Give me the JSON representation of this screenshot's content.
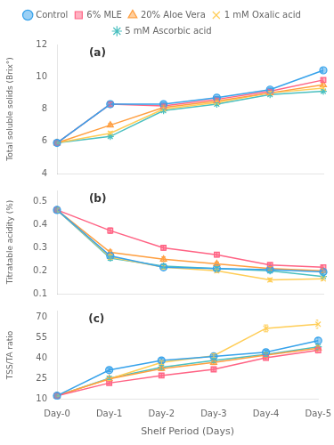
{
  "chart_data": [
    {
      "type": "line",
      "y_label": "Total soluble solids (Brix°)",
      "categories": [
        "Day-0",
        "Day-1",
        "Day-2",
        "Day-3",
        "Day-4",
        "Day-5"
      ],
      "series": [
        {
          "name": "Control",
          "marker": "circle",
          "values": [
            5.9,
            8.3,
            8.3,
            8.7,
            9.2,
            10.4
          ],
          "errors": [
            0.05,
            0.12,
            0.1,
            0.08,
            0.1,
            0.12
          ]
        },
        {
          "name": "6% MLE",
          "marker": "square",
          "values": [
            5.9,
            8.3,
            8.2,
            8.6,
            9.1,
            9.8
          ],
          "errors": [
            0.05,
            0.12,
            0.1,
            0.08,
            0.1,
            0.1
          ]
        },
        {
          "name": "20% Aloe Vera",
          "marker": "triangle",
          "values": [
            5.9,
            7.0,
            8.1,
            8.5,
            9.0,
            9.5
          ],
          "errors": [
            0.05,
            0.1,
            0.1,
            0.08,
            0.1,
            0.1
          ]
        },
        {
          "name": "1 mM Oxalic acid",
          "marker": "x",
          "values": [
            5.9,
            6.5,
            8.0,
            8.4,
            9.0,
            9.3
          ],
          "errors": [
            0.05,
            0.1,
            0.08,
            0.08,
            0.08,
            0.1
          ]
        },
        {
          "name": "5 mM Ascorbic acid",
          "marker": "star",
          "values": [
            5.9,
            6.3,
            7.9,
            8.3,
            8.9,
            9.1
          ],
          "errors": [
            0.05,
            0.08,
            0.08,
            0.08,
            0.08,
            0.1
          ]
        }
      ],
      "ylim": [
        4,
        12
      ],
      "yticks": [
        4,
        6,
        8,
        10,
        12
      ],
      "grid": false,
      "legend": "top",
      "tick_labels": "y",
      "annotations": [
        "(a)"
      ]
    },
    {
      "type": "line",
      "y_label": "Titratable acidity (%)",
      "categories": [
        "Day-0",
        "Day-1",
        "Day-2",
        "Day-3",
        "Day-4",
        "Day-5"
      ],
      "series": [
        {
          "name": "Control",
          "marker": "circle",
          "values": [
            0.465,
            0.265,
            0.215,
            0.21,
            0.205,
            0.195
          ],
          "errors": [
            0.008,
            0.01,
            0.008,
            0.008,
            0.008,
            0.008
          ]
        },
        {
          "name": "6% MLE",
          "marker": "square",
          "values": [
            0.465,
            0.375,
            0.3,
            0.27,
            0.225,
            0.215
          ],
          "errors": [
            0.008,
            0.012,
            0.01,
            0.01,
            0.008,
            0.008
          ]
        },
        {
          "name": "20% Aloe Vera",
          "marker": "triangle",
          "values": [
            0.465,
            0.28,
            0.25,
            0.23,
            0.21,
            0.2
          ],
          "errors": [
            0.008,
            0.01,
            0.01,
            0.008,
            0.008,
            0.008
          ]
        },
        {
          "name": "1 mM Oxalic acid",
          "marker": "x",
          "values": [
            0.465,
            0.26,
            0.215,
            0.2,
            0.16,
            0.165
          ],
          "errors": [
            0.008,
            0.01,
            0.008,
            0.008,
            0.008,
            0.008
          ]
        },
        {
          "name": "5 mM Ascorbic acid",
          "marker": "star",
          "values": [
            0.465,
            0.255,
            0.22,
            0.21,
            0.2,
            0.175
          ],
          "errors": [
            0.008,
            0.01,
            0.008,
            0.008,
            0.008,
            0.008
          ]
        }
      ],
      "ylim": [
        0.1,
        0.55
      ],
      "yticks": [
        0.1,
        0.2,
        0.3,
        0.4,
        0.5
      ],
      "grid": false,
      "tick_labels": "y",
      "annotations": [
        "(b)"
      ]
    },
    {
      "type": "line",
      "y_label": "TSS/TA ratio",
      "x_label": "Shelf Period (Days)",
      "categories": [
        "Day-0",
        "Day-1",
        "Day-2",
        "Day-3",
        "Day-4",
        "Day-5"
      ],
      "series": [
        {
          "name": "Control",
          "marker": "circle",
          "values": [
            12.7,
            31.5,
            38.5,
            41.5,
            44.5,
            53.0
          ],
          "errors": [
            0.3,
            1.2,
            1.5,
            1.5,
            1.5,
            2.0
          ]
        },
        {
          "name": "6% MLE",
          "marker": "square",
          "values": [
            12.7,
            22.0,
            27.5,
            32.0,
            40.5,
            46.0
          ],
          "errors": [
            0.3,
            1.0,
            1.5,
            1.5,
            1.5,
            2.0
          ]
        },
        {
          "name": "20% Aloe Vera",
          "marker": "triangle",
          "values": [
            12.7,
            25.0,
            32.5,
            37.0,
            42.5,
            47.5
          ],
          "errors": [
            0.3,
            1.0,
            1.5,
            1.5,
            1.5,
            2.0
          ]
        },
        {
          "name": "1 mM Oxalic acid",
          "marker": "x",
          "values": [
            12.7,
            25.0,
            37.0,
            42.0,
            62.0,
            65.0
          ],
          "errors": [
            0.3,
            1.2,
            1.5,
            1.5,
            2.5,
            3.0
          ]
        },
        {
          "name": "5 mM Ascorbic acid",
          "marker": "star",
          "values": [
            12.7,
            25.5,
            33.5,
            38.5,
            43.0,
            48.5
          ],
          "errors": [
            0.3,
            1.0,
            1.5,
            1.5,
            1.5,
            2.0
          ]
        }
      ],
      "ylim": [
        10,
        75
      ],
      "yticks": [
        10,
        25,
        40,
        55,
        70
      ],
      "grid": false,
      "annotations": [
        "(c)"
      ]
    }
  ]
}
